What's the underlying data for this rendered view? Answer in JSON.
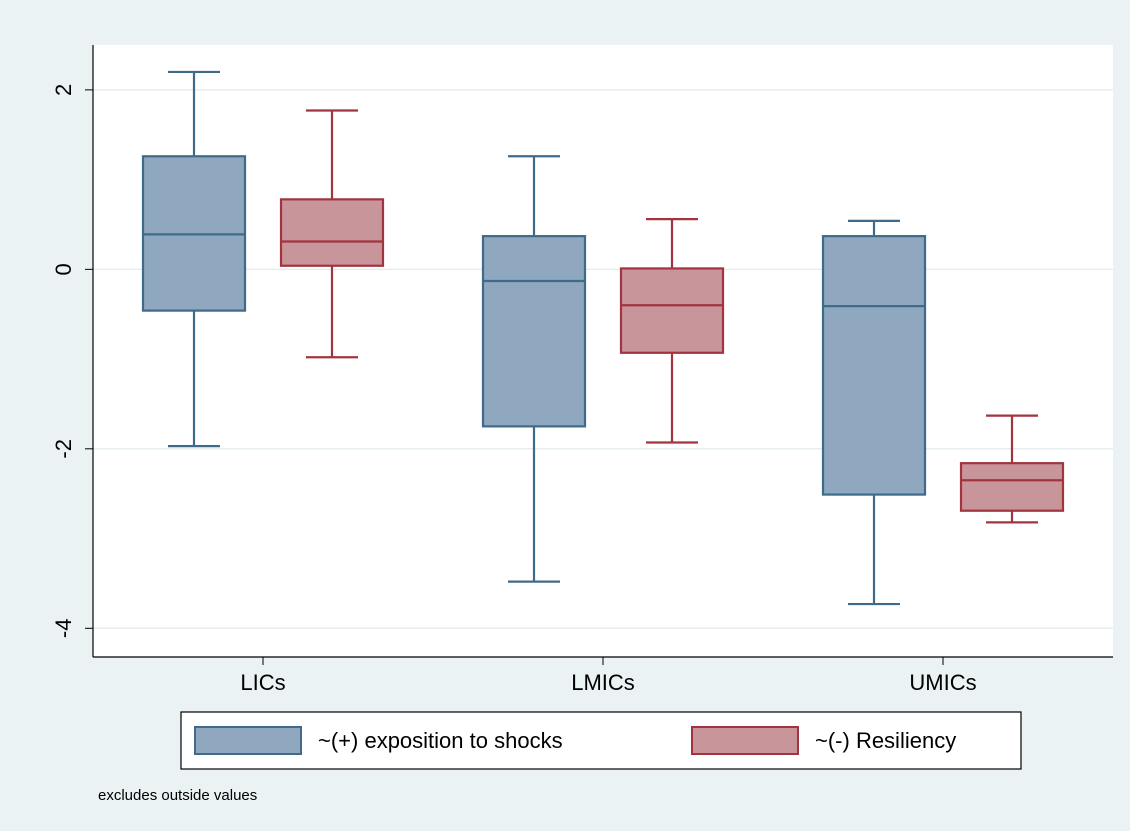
{
  "chart_data": {
    "type": "box",
    "categories": [
      "LICs",
      "LMICs",
      "UMICs"
    ],
    "series": [
      {
        "name": "~(+) exposition to shocks",
        "color": "#8fa7bf",
        "edge": "#3f6b8b",
        "values": [
          {
            "low": -1.97,
            "q1": -0.46,
            "median": 0.39,
            "q3": 1.26,
            "high": 2.2
          },
          {
            "low": -3.48,
            "q1": -1.75,
            "median": -0.13,
            "q3": 0.37,
            "high": 1.26
          },
          {
            "low": -3.73,
            "q1": -2.51,
            "median": -0.41,
            "q3": 0.37,
            "high": 0.54
          }
        ]
      },
      {
        "name": "~(-) Resiliency",
        "color": "#c8959b",
        "edge": "#a2343f",
        "values": [
          {
            "low": -0.98,
            "q1": 0.04,
            "median": 0.31,
            "q3": 0.78,
            "high": 1.77
          },
          {
            "low": -1.93,
            "q1": -0.93,
            "median": -0.4,
            "q3": 0.01,
            "high": 0.56
          },
          {
            "low": -2.82,
            "q1": -2.69,
            "median": -2.35,
            "q3": -2.16,
            "high": -1.63
          }
        ]
      }
    ],
    "ylim": [
      -4.32,
      2.5
    ],
    "yticks": [
      -4,
      -2,
      0,
      2
    ],
    "grid": true,
    "note": "excludes outside values"
  }
}
